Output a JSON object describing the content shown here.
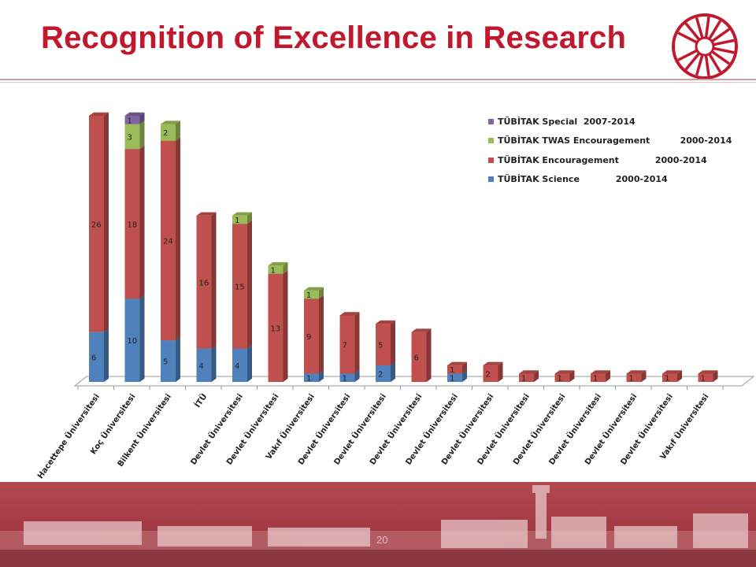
{
  "slide": {
    "title": "Recognition of Excellence in Research",
    "page_number": "20"
  },
  "colors": {
    "title": "#c0182d",
    "science": "#4f81bd",
    "encouragement": "#c0504d",
    "twas": "#9bbb59",
    "special": "#8064a2"
  },
  "chart_data": {
    "type": "bar",
    "stacked": true,
    "three_d": true,
    "legend_position": "top-right",
    "categories": [
      "Hacettepe Üniversitesi",
      "Koç Üniversitesi",
      "Bilkent Üniversitesi",
      "İTÜ",
      "Devlet Üniversitesi",
      "Devlet Üniversitesi",
      "Vakıf Üniversitesi",
      "Devlet Üniversitesi",
      "Devlet Üniversitesi",
      "Devlet Üniversitesi",
      "Devlet Üniversitesi",
      "Devlet Üniversitesi",
      "Devlet Üniversitesi",
      "Devlet Üniversitesi",
      "Devlet Üniversitesi",
      "Devlet Üniversitesi",
      "Devlet Üniversitesi",
      "Vakıf Üniversitesi"
    ],
    "series": [
      {
        "name": "TÜBİTAK Science            2000-2014",
        "key": "science",
        "values": [
          6,
          10,
          5,
          4,
          4,
          0,
          1,
          1,
          2,
          0,
          1,
          0,
          0,
          0,
          0,
          0,
          0,
          0
        ]
      },
      {
        "name": "TÜBİTAK Encouragement            2000-2014",
        "key": "encouragement",
        "values": [
          26,
          18,
          24,
          16,
          15,
          13,
          9,
          7,
          5,
          6,
          1,
          2,
          1,
          1,
          1,
          1,
          1,
          1
        ]
      },
      {
        "name": "TÜBİTAK TWAS Encouragement          2000-2014",
        "key": "twas",
        "values": [
          0,
          3,
          2,
          0,
          1,
          1,
          1,
          0,
          0,
          0,
          0,
          0,
          0,
          0,
          0,
          0,
          0,
          0
        ]
      },
      {
        "name": "TÜBİTAK Special  2007-2014",
        "key": "special",
        "values": [
          0,
          1,
          0,
          0,
          0,
          0,
          0,
          0,
          0,
          0,
          0,
          0,
          0,
          0,
          0,
          0,
          0,
          0
        ]
      }
    ],
    "ylim": [
      0,
      32
    ]
  }
}
